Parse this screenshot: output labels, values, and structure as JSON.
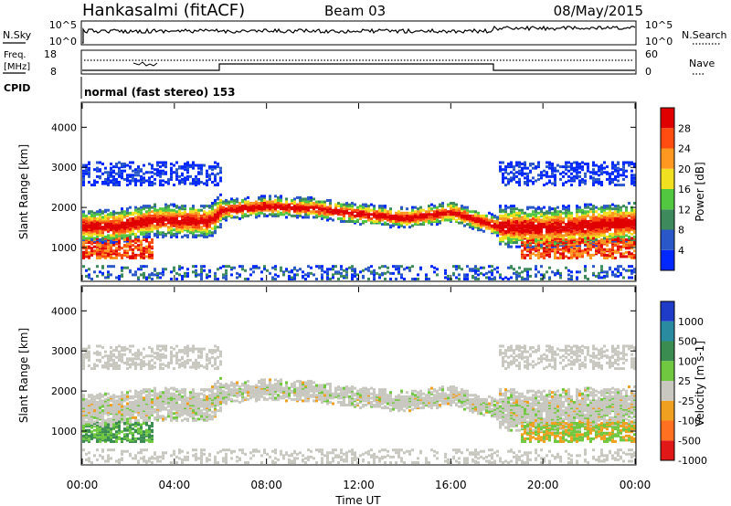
{
  "header": {
    "station": "Hankasalmi (fitACF)",
    "beam": "Beam 03",
    "date": "08/May/2015"
  },
  "panels": {
    "nsky": {
      "label": "N.Sky",
      "right_label": "N.Search",
      "left_ticks": [
        "10^5",
        "10^0"
      ],
      "right_ticks": [
        "10^5",
        "10^0"
      ]
    },
    "freq": {
      "label_line1": "Freq.",
      "label_line2": "[MHz]",
      "right_label": "Nave",
      "left_ticks": [
        "18",
        "8"
      ],
      "right_ticks": [
        "60",
        "0"
      ]
    },
    "cpid": {
      "label": "CPID",
      "text": "normal (fast stereo) 153"
    }
  },
  "chart_data": [
    {
      "type": "heatmap",
      "title": "",
      "xlabel": "Time UT",
      "ylabel": "Slant Range [km]",
      "x_ticks": [
        "00:00",
        "04:00",
        "08:00",
        "12:00",
        "16:00",
        "20:00",
        "00:00"
      ],
      "x_range_hours": [
        0,
        24
      ],
      "y_ticks": [
        1000,
        2000,
        3000,
        4000
      ],
      "ylim": [
        180,
        4600
      ],
      "colorbar": {
        "label": "Power [dB]",
        "ticks": [
          "4",
          "8",
          "12",
          "16",
          "20",
          "24",
          "28"
        ],
        "colors": [
          "#0028ff",
          "#2a58c8",
          "#3d8a5c",
          "#52c840",
          "#f0e020",
          "#ff9820",
          "#ff4c10",
          "#e00000"
        ]
      },
      "echo_band": [
        {
          "hour": 1.5,
          "range_km": 1500
        },
        {
          "hour": 3.0,
          "range_km": 1650
        },
        {
          "hour": 5.5,
          "range_km": 1620
        },
        {
          "hour": 6.0,
          "range_km": 1900
        },
        {
          "hour": 8.0,
          "range_km": 2000
        },
        {
          "hour": 10.0,
          "range_km": 1950
        },
        {
          "hour": 12.0,
          "range_km": 1800
        },
        {
          "hour": 14.0,
          "range_km": 1700
        },
        {
          "hour": 16.0,
          "range_km": 1850
        },
        {
          "hour": 18.0,
          "range_km": 1500
        },
        {
          "hour": 20.0,
          "range_km": 1450
        },
        {
          "hour": 24.0,
          "range_km": 1600
        }
      ]
    },
    {
      "type": "heatmap",
      "title": "",
      "xlabel": "Time UT",
      "ylabel": "Slant Range [km]",
      "x_ticks": [
        "00:00",
        "04:00",
        "08:00",
        "12:00",
        "16:00",
        "20:00",
        "00:00"
      ],
      "x_range_hours": [
        0,
        24
      ],
      "y_ticks": [
        1000,
        2000,
        3000,
        4000
      ],
      "ylim": [
        180,
        4600
      ],
      "colorbar": {
        "label": "Velocity [m s-1]",
        "ticks": [
          "1000",
          "500",
          "100",
          "25",
          "-25",
          "-100",
          "-500",
          "-1000"
        ],
        "colors": [
          "#1e3cc8",
          "#2a8aa0",
          "#3a8c50",
          "#70c840",
          "#c8c8c0",
          "#f0a020",
          "#ff7020",
          "#e01818"
        ]
      }
    }
  ]
}
